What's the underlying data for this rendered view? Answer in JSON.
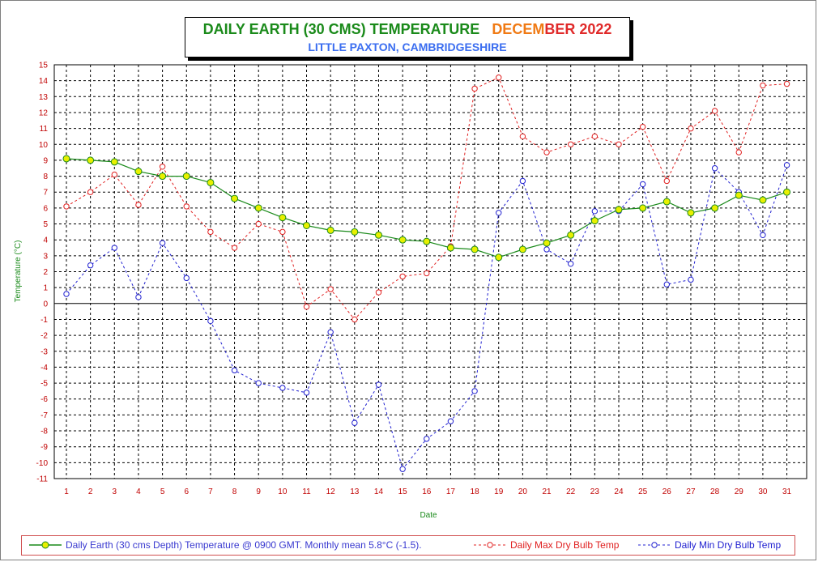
{
  "title": {
    "main": "DAILY EARTH (30 CMS) TEMPERATURE",
    "month_part1": "DECEM",
    "month_part2": "BER 2022",
    "subtitle": "LITTLE PAXTON, CAMBRIDGESHIRE"
  },
  "colors": {
    "earth_line": "#1a8a1a",
    "earth_marker": "#e8f000",
    "max_line": "#e02020",
    "min_line": "#2020d0",
    "tick_text": "#c00000",
    "axis_title": "#1a8a1a"
  },
  "chart_data": {
    "type": "line",
    "xlabel": "Date",
    "ylabel": "Temperature (°C)",
    "ylim": [
      -11,
      15
    ],
    "grid": true,
    "legend_position": "bottom",
    "x": [
      1,
      2,
      3,
      4,
      5,
      6,
      7,
      8,
      9,
      10,
      11,
      12,
      13,
      14,
      15,
      16,
      17,
      18,
      19,
      20,
      21,
      22,
      23,
      24,
      25,
      26,
      27,
      28,
      29,
      30,
      31
    ],
    "series": [
      {
        "name": "Daily Earth (30 cms Depth) Temperature @ 0900 GMT. Monthly mean 5.8°C (-1.5).",
        "style": "solid",
        "values": [
          9.1,
          9.0,
          8.9,
          8.3,
          8.0,
          8.0,
          7.6,
          6.6,
          6.0,
          5.4,
          4.9,
          4.6,
          4.5,
          4.3,
          4.0,
          3.9,
          3.5,
          3.4,
          2.9,
          3.4,
          3.8,
          4.3,
          5.2,
          5.9,
          6.0,
          6.4,
          5.7,
          6.0,
          6.8,
          6.5,
          7.0
        ]
      },
      {
        "name": "Daily Max Dry Bulb Temp",
        "style": "dashed",
        "values": [
          6.1,
          7.0,
          8.1,
          6.2,
          8.6,
          6.1,
          4.5,
          3.5,
          5.0,
          4.5,
          -0.2,
          0.9,
          -1.0,
          0.7,
          1.7,
          1.9,
          3.6,
          13.5,
          14.2,
          10.5,
          9.5,
          10.0,
          10.5,
          10.0,
          11.1,
          7.7,
          11.0,
          12.1,
          9.5,
          13.7,
          13.8
        ]
      },
      {
        "name": "Daily Min Dry Bulb Temp",
        "style": "dashed",
        "values": [
          0.6,
          2.4,
          3.5,
          0.4,
          3.8,
          1.6,
          -1.1,
          -4.2,
          -5.0,
          -5.3,
          -5.6,
          -1.8,
          -7.5,
          -5.1,
          -10.4,
          -8.5,
          -7.4,
          -5.5,
          5.7,
          7.7,
          3.4,
          2.5,
          5.8,
          5.8,
          7.5,
          1.2,
          1.5,
          8.5,
          7.0,
          4.3,
          8.7
        ]
      }
    ]
  }
}
